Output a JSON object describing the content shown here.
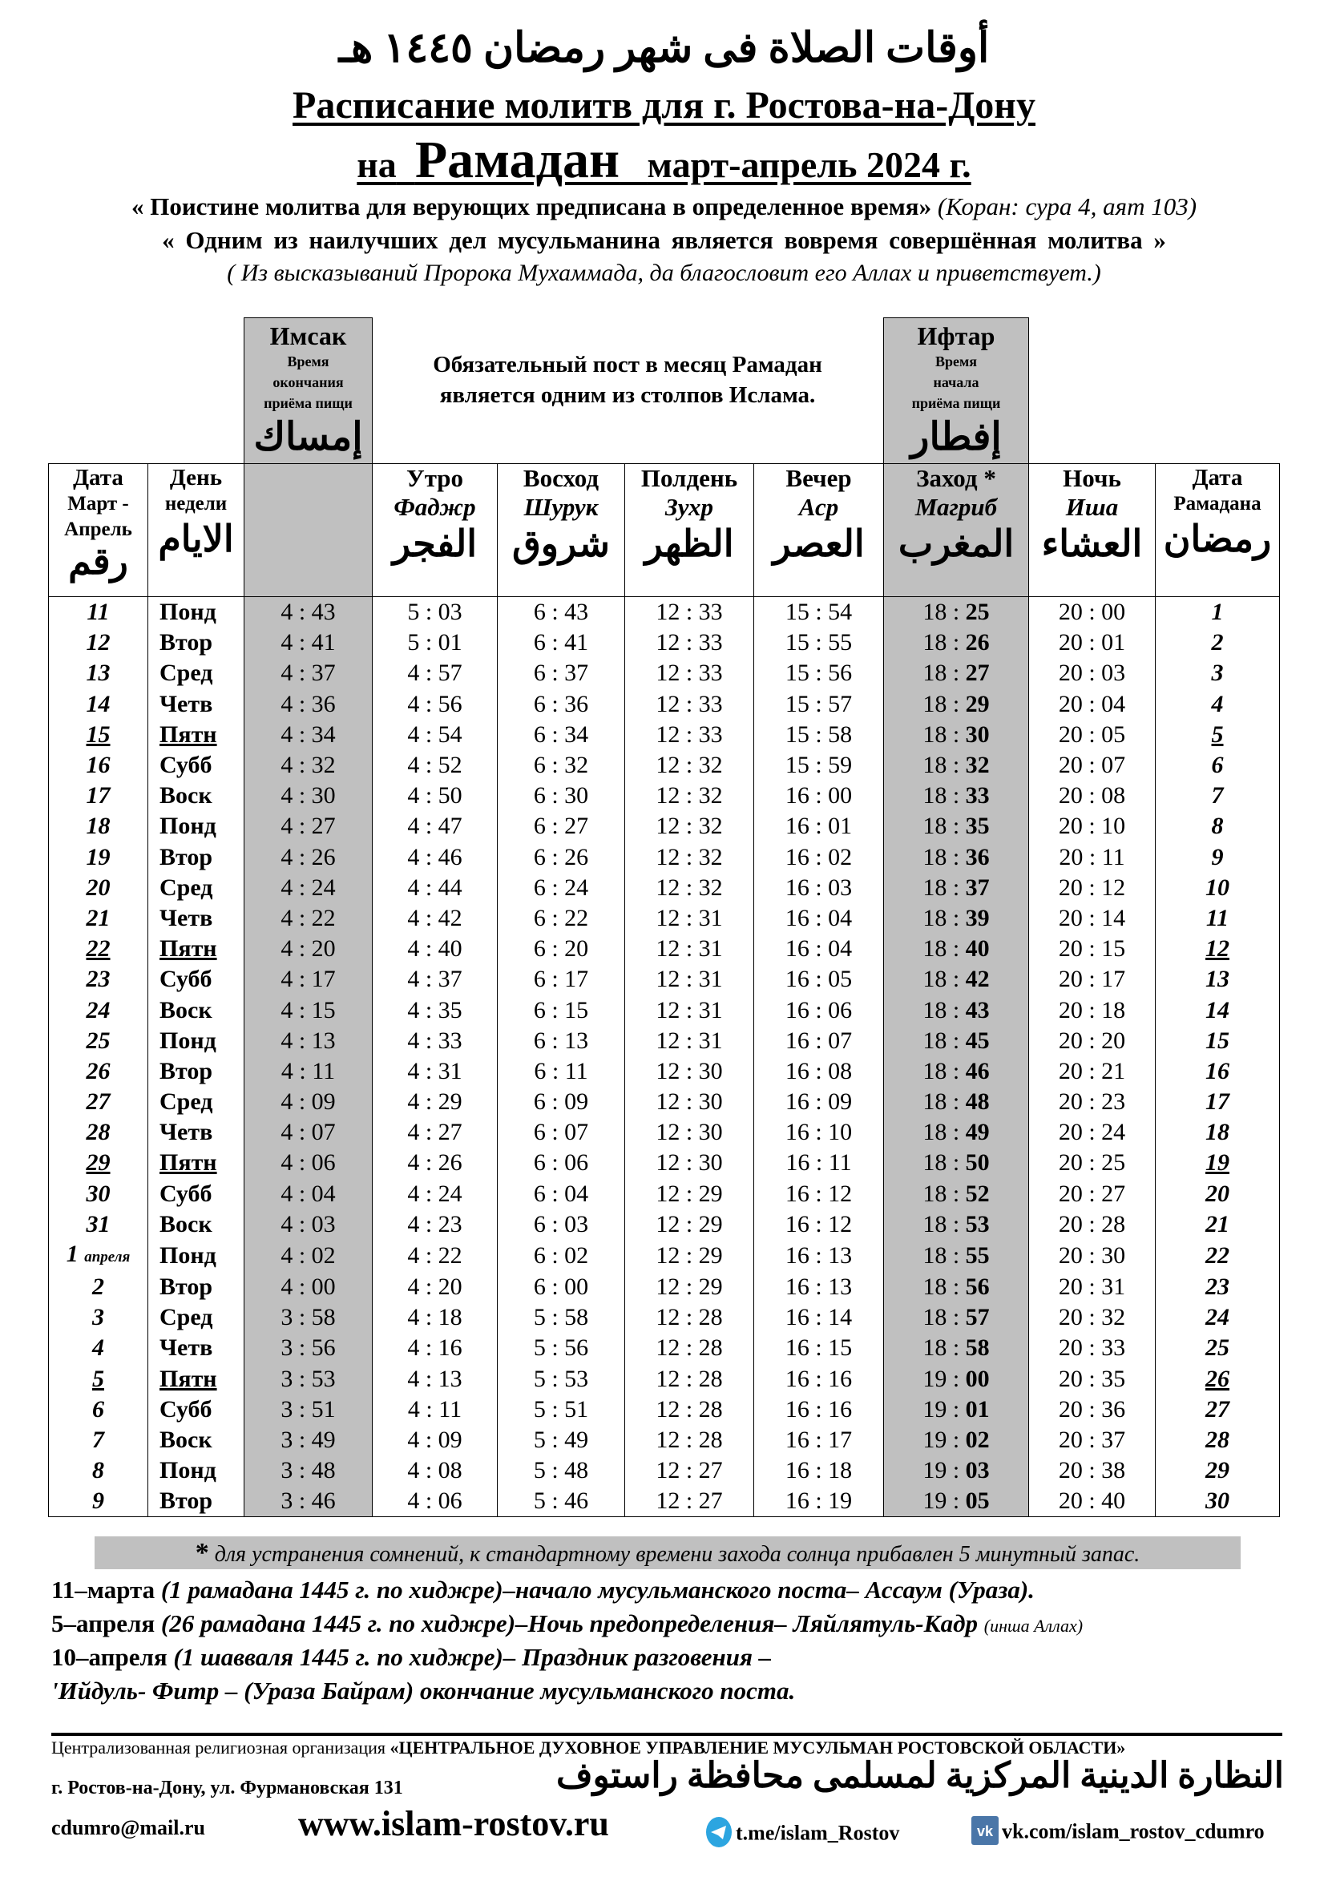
{
  "header": {
    "arabic_title": "أوقات الصلاة فى شهر رمضان ١٤٤٥ هـ",
    "title_line1": "Расписание  молитв для г. Ростова-на-Дону",
    "title_line2_prefix": "на",
    "title_line2_big": "Рамадан",
    "title_line2_suffix": "март-апрель 2024 г.",
    "quote1": "« Поистине молитва для верующих предписана в определенное время»",
    "quote1_source": "(Коран: сура 4, аят 103)",
    "quote2": "« Одним  из  наилучших  дел  мусульманина  является  вовремя  совершённая  молитва »",
    "quote3": "( Из высказываний Пророка Мухаммада, да благословит его Аллах и приветствует.)"
  },
  "imsak_box": {
    "title": "Имсак",
    "sub1": "Время",
    "sub2": "окончания",
    "sub3": "приёма пищи",
    "arabic": "إمساك"
  },
  "iftar_box": {
    "title": "Ифтар",
    "sub1": "Время",
    "sub2": "начала",
    "sub3": "приёма пищи",
    "arabic": "إفطار"
  },
  "fast_note": {
    "line1": "Обязательный пост в месяц Рамадан",
    "line2": "является одним из столпов Ислама."
  },
  "columns": [
    {
      "r1": "Дата",
      "r2": "Март -",
      "r3": "Апрель",
      "ar": "رقم"
    },
    {
      "r1": "День",
      "r2": "недели",
      "ar": "الايام"
    },
    {
      "r1": "",
      "r2": "",
      "ar": ""
    },
    {
      "r1": "Утро",
      "r2": "Фаджр",
      "ar": "الفجر"
    },
    {
      "r1": "Восход",
      "r2": "Шурук",
      "ar": "شروق"
    },
    {
      "r1": "Полдень",
      "r2": "Зухр",
      "ar": "الظهر"
    },
    {
      "r1": "Вечер",
      "r2": "Аср",
      "ar": "العصر"
    },
    {
      "r1": "Заход *",
      "r2": "Магриб",
      "ar": "المغرب"
    },
    {
      "r1": "Ночь",
      "r2": "Иша",
      "ar": "العشاء"
    },
    {
      "r1": "Дата",
      "r2": "Рамадана",
      "ar": "رمضان"
    }
  ],
  "april_label": "апреля",
  "rows": [
    [
      "11",
      "Понд",
      "4 : 43",
      "5 : 03",
      "6 : 43",
      "12 : 33",
      "15 : 54",
      "18 : 25",
      "20 : 00",
      "1"
    ],
    [
      "12",
      "Втор",
      "4 : 41",
      "5 : 01",
      "6 : 41",
      "12 : 33",
      "15 : 55",
      "18 : 26",
      "20 : 01",
      "2"
    ],
    [
      "13",
      "Сред",
      "4 : 37",
      "4 : 57",
      "6 : 37",
      "12 : 33",
      "15 : 56",
      "18 : 27",
      "20 : 03",
      "3"
    ],
    [
      "14",
      "Четв",
      "4 : 36",
      "4 : 56",
      "6 : 36",
      "12 : 33",
      "15 : 57",
      "18 : 29",
      "20 : 04",
      "4"
    ],
    [
      "15",
      "Пятн",
      "4 : 34",
      "4 : 54",
      "6 : 34",
      "12 : 33",
      "15 : 58",
      "18 : 30",
      "20 : 05",
      "5"
    ],
    [
      "16",
      "Субб",
      "4 : 32",
      "4 : 52",
      "6 : 32",
      "12 : 32",
      "15 : 59",
      "18 : 32",
      "20 : 07",
      "6"
    ],
    [
      "17",
      "Воск",
      "4 : 30",
      "4 : 50",
      "6 : 30",
      "12 : 32",
      "16 : 00",
      "18 : 33",
      "20 : 08",
      "7"
    ],
    [
      "18",
      "Понд",
      "4 : 27",
      "4 : 47",
      "6 : 27",
      "12 : 32",
      "16 : 01",
      "18 : 35",
      "20 : 10",
      "8"
    ],
    [
      "19",
      "Втор",
      "4 : 26",
      "4 : 46",
      "6 : 26",
      "12 : 32",
      "16 : 02",
      "18 : 36",
      "20 : 11",
      "9"
    ],
    [
      "20",
      "Сред",
      "4 : 24",
      "4 : 44",
      "6 : 24",
      "12 : 32",
      "16 : 03",
      "18 : 37",
      "20 : 12",
      "10"
    ],
    [
      "21",
      "Четв",
      "4 : 22",
      "4 : 42",
      "6 : 22",
      "12 : 31",
      "16 : 04",
      "18 : 39",
      "20 : 14",
      "11"
    ],
    [
      "22",
      "Пятн",
      "4 : 20",
      "4 : 40",
      "6 : 20",
      "12 : 31",
      "16 : 04",
      "18 : 40",
      "20 : 15",
      "12"
    ],
    [
      "23",
      "Субб",
      "4 : 17",
      "4 : 37",
      "6 : 17",
      "12 : 31",
      "16 : 05",
      "18 : 42",
      "20 : 17",
      "13"
    ],
    [
      "24",
      "Воск",
      "4 : 15",
      "4 : 35",
      "6 : 15",
      "12 : 31",
      "16 : 06",
      "18 : 43",
      "20 : 18",
      "14"
    ],
    [
      "25",
      "Понд",
      "4 : 13",
      "4 : 33",
      "6 : 13",
      "12 : 31",
      "16 : 07",
      "18 : 45",
      "20 : 20",
      "15"
    ],
    [
      "26",
      "Втор",
      "4 : 11",
      "4 : 31",
      "6 : 11",
      "12 : 30",
      "16 : 08",
      "18 : 46",
      "20 : 21",
      "16"
    ],
    [
      "27",
      "Сред",
      "4 : 09",
      "4 : 29",
      "6 : 09",
      "12 : 30",
      "16 : 09",
      "18 : 48",
      "20 : 23",
      "17"
    ],
    [
      "28",
      "Четв",
      "4 : 07",
      "4 : 27",
      "6 : 07",
      "12 : 30",
      "16 : 10",
      "18 : 49",
      "20 : 24",
      "18"
    ],
    [
      "29",
      "Пятн",
      "4 : 06",
      "4 : 26",
      "6 : 06",
      "12 : 30",
      "16 : 11",
      "18 : 50",
      "20 : 25",
      "19"
    ],
    [
      "30",
      "Субб",
      "4 : 04",
      "4 : 24",
      "6 : 04",
      "12 : 29",
      "16 : 12",
      "18 : 52",
      "20 : 27",
      "20"
    ],
    [
      "31",
      "Воск",
      "4 : 03",
      "4 : 23",
      "6 : 03",
      "12 : 29",
      "16 : 12",
      "18 : 53",
      "20 : 28",
      "21"
    ],
    [
      "1",
      "Понд",
      "4 : 02",
      "4 : 22",
      "6 : 02",
      "12 : 29",
      "16 : 13",
      "18 : 55",
      "20 : 30",
      "22"
    ],
    [
      "2",
      "Втор",
      "4 : 00",
      "4 : 20",
      "6 : 00",
      "12 : 29",
      "16 : 13",
      "18 : 56",
      "20 : 31",
      "23"
    ],
    [
      "3",
      "Сред",
      "3 : 58",
      "4 : 18",
      "5 : 58",
      "12 : 28",
      "16 : 14",
      "18 : 57",
      "20 : 32",
      "24"
    ],
    [
      "4",
      "Четв",
      "3 : 56",
      "4 : 16",
      "5 : 56",
      "12 : 28",
      "16 : 15",
      "18 : 58",
      "20 : 33",
      "25"
    ],
    [
      "5",
      "Пятн",
      "3 : 53",
      "4 : 13",
      "5 : 53",
      "12 : 28",
      "16 : 16",
      "19 : 00",
      "20 : 35",
      "26"
    ],
    [
      "6",
      "Субб",
      "3 : 51",
      "4 : 11",
      "5 : 51",
      "12 : 28",
      "16 : 16",
      "19 : 01",
      "20 : 36",
      "27"
    ],
    [
      "7",
      "Воск",
      "3 : 49",
      "4 : 09",
      "5 : 49",
      "12 : 28",
      "16 : 17",
      "19 : 02",
      "20 : 37",
      "28"
    ],
    [
      "8",
      "Понд",
      "3 : 48",
      "4 : 08",
      "5 : 48",
      "12 : 27",
      "16 : 18",
      "19 : 03",
      "20 : 38",
      "29"
    ],
    [
      "9",
      "Втор",
      "3 : 46",
      "4 : 06",
      "5 : 46",
      "12 : 27",
      "16 : 19",
      "19 : 05",
      "20 : 40",
      "30"
    ]
  ],
  "footnote": {
    "star": "*",
    "text": " для устранения сомнений, к стандартному времени захода солнца прибавлен 5 минутный запас."
  },
  "notes": [
    {
      "date": "11–марта",
      "text": " (1 рамадана 1445 г. по хиджре)–начало мусульманского  поста–  Ассаум (Ураза).",
      "small": ""
    },
    {
      "date": "5–апреля",
      "text": " (26 рамадана 1445 г. по хиджре)–Ночь предопределения– Ляйлятуль-Кадр ",
      "small": "(инша Аллах)"
    },
    {
      "date": "10–апреля",
      "text": " (1 шавваля  1445 г. по хиджре)– Праздник  разговения –",
      "small": ""
    },
    {
      "date": "",
      "text": "'Ийдуль- Фитр –  (Ураза  Байрам) окончание  мусульманского  поста.",
      "small": ""
    }
  ],
  "footer": {
    "org_prefix": "Централизованная религиозная организация ",
    "org_name": "«ЦЕНТРАЛЬНОЕ ДУХОВНОЕ УПРАВЛЕНИЕ МУСУЛЬМАН РОСТОВСКОЙ ОБЛАСТИ»",
    "arabic_org": "النظارة الدينية المركزية لمسلمى محافظة راستوف",
    "address": "г. Ростов-на-Дону, ул. Фурмановская 131",
    "email": "cdumro@mail.ru",
    "website": "www.islam-rostov.ru",
    "telegram": "t.me/islam_Rostov",
    "vk": "vk.com/islam_rostov_cdumro"
  },
  "colors": {
    "shade": "#c0c0c0",
    "telegram": "#2ca5e0",
    "vk": "#4a76a8"
  },
  "underlined_fridays": [
    "15",
    "22",
    "29",
    "5"
  ]
}
